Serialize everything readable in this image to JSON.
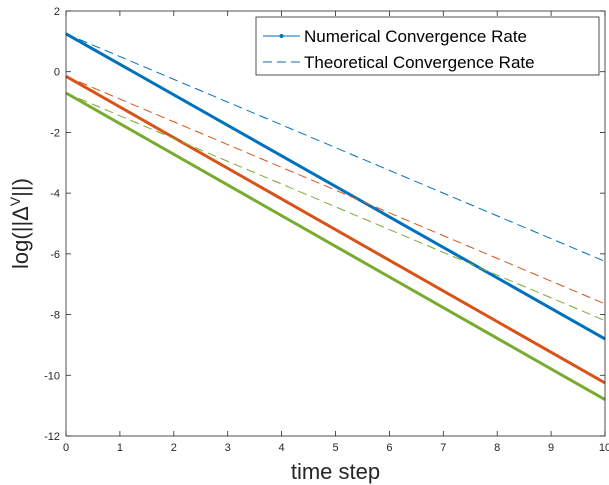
{
  "chart_data": {
    "type": "line",
    "xlabel": "time step",
    "ylabel": "log(||Δ^V||)",
    "ylabel_base": "log(||Δ",
    "ylabel_sup": "V",
    "ylabel_end": "||)",
    "xlim": [
      0,
      10
    ],
    "ylim": [
      -12,
      2
    ],
    "x_ticks": [
      0,
      1,
      2,
      3,
      4,
      5,
      6,
      7,
      8,
      9,
      10
    ],
    "y_ticks": [
      2,
      0,
      -2,
      -4,
      -6,
      -8,
      -10,
      -12
    ],
    "grid": false,
    "legend_position": "top-right",
    "legend": [
      {
        "label": "Numerical Convergence Rate",
        "style": "solid-dot"
      },
      {
        "label": "Theoretical Convergence Rate",
        "style": "dashed"
      }
    ],
    "series": [
      {
        "kind": "numerical",
        "color": "#0072BD",
        "x": [
          0,
          10
        ],
        "y": [
          1.25,
          -8.8
        ]
      },
      {
        "kind": "numerical",
        "color": "#D95319",
        "x": [
          0,
          10
        ],
        "y": [
          -0.15,
          -10.25
        ]
      },
      {
        "kind": "numerical",
        "color": "#77AC30",
        "x": [
          0,
          10
        ],
        "y": [
          -0.7,
          -10.8
        ]
      },
      {
        "kind": "theoretical",
        "color": "#0072BD",
        "x": [
          0,
          10
        ],
        "y": [
          1.25,
          -6.25
        ]
      },
      {
        "kind": "theoretical",
        "color": "#D95319",
        "x": [
          0,
          10
        ],
        "y": [
          -0.15,
          -7.65
        ]
      },
      {
        "kind": "theoretical",
        "color": "#77AC30",
        "x": [
          0,
          10
        ],
        "y": [
          -0.7,
          -8.2
        ]
      }
    ]
  }
}
